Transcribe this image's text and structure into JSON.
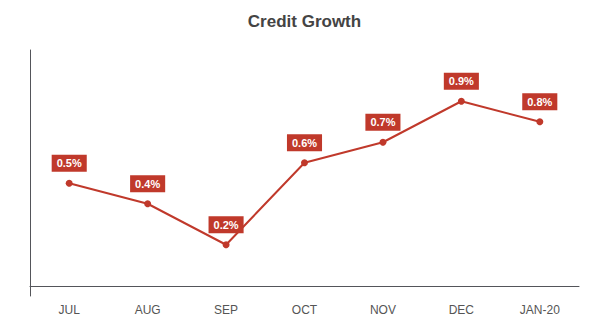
{
  "chart_data": {
    "type": "line",
    "title": "Credit Growth",
    "categories": [
      "JUL",
      "AUG",
      "SEP",
      "OCT",
      "NOV",
      "DEC",
      "JAN-20"
    ],
    "values": [
      0.5,
      0.4,
      0.2,
      0.6,
      0.7,
      0.9,
      0.8
    ],
    "value_labels": [
      "0.5%",
      "0.4%",
      "0.2%",
      "0.6%",
      "0.7%",
      "0.9%",
      "0.8%"
    ],
    "color": "#c0392b",
    "ylim": [
      -0.05,
      1.15
    ],
    "grid": false,
    "data_labels": true,
    "tick_labels": "x",
    "marker": "circle"
  }
}
